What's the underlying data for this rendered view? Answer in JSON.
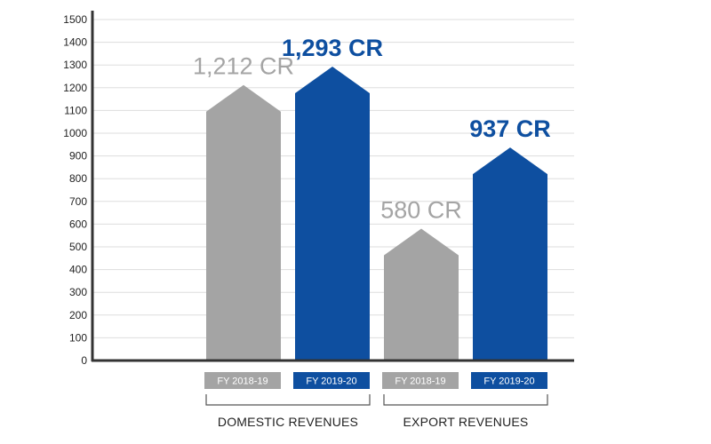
{
  "colors": {
    "fy2018_19": "#a4a4a4",
    "fy2019_20": "#0e4fa0",
    "grid": "#dddddd",
    "axis": "#333333",
    "bracket": "#555555"
  },
  "chart_data": {
    "type": "bar",
    "shape": "arrow-topped bars",
    "title": "",
    "xlabel": "",
    "ylabel": "",
    "ylim": [
      0,
      1500
    ],
    "yticks": [
      0,
      100,
      200,
      300,
      400,
      500,
      600,
      700,
      800,
      900,
      1000,
      1100,
      1200,
      1300,
      1400,
      1500
    ],
    "grid": true,
    "groups": [
      "DOMESTIC REVENUES",
      "EXPORT REVENUES"
    ],
    "series": [
      {
        "name": "FY 2018-19",
        "values": [
          1212,
          580
        ],
        "data_labels": [
          "1,212 CR",
          "580 CR"
        ]
      },
      {
        "name": "FY 2019-20",
        "values": [
          1293,
          937
        ],
        "data_labels": [
          "1,293 CR",
          "937 CR"
        ]
      }
    ]
  }
}
